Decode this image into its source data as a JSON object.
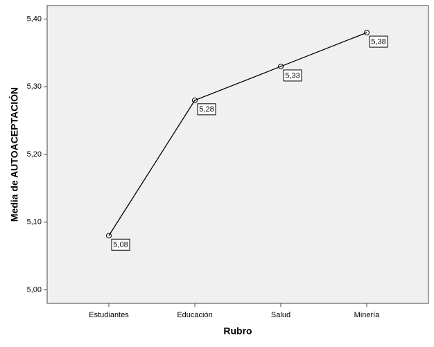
{
  "chart_data": {
    "type": "line",
    "x_label": "Rubro",
    "y_label": "Media de AUTOACEPTACIÓN",
    "categories": [
      "Estudiantes",
      "Educación",
      "Salud",
      "Minería"
    ],
    "values": [
      5.08,
      5.28,
      5.33,
      5.38
    ],
    "value_labels": [
      "5,08",
      "5,28",
      "5,33",
      "5,38"
    ],
    "color": "#000000",
    "ylim": [
      4.98,
      5.42
    ],
    "yticks": [
      {
        "value": 5.0,
        "label": "5,00"
      },
      {
        "value": 5.1,
        "label": "5,10"
      },
      {
        "value": 5.2,
        "label": "5,20"
      },
      {
        "value": 5.3,
        "label": "5,30"
      },
      {
        "value": 5.4,
        "label": "5,40"
      }
    ],
    "grid": false
  }
}
